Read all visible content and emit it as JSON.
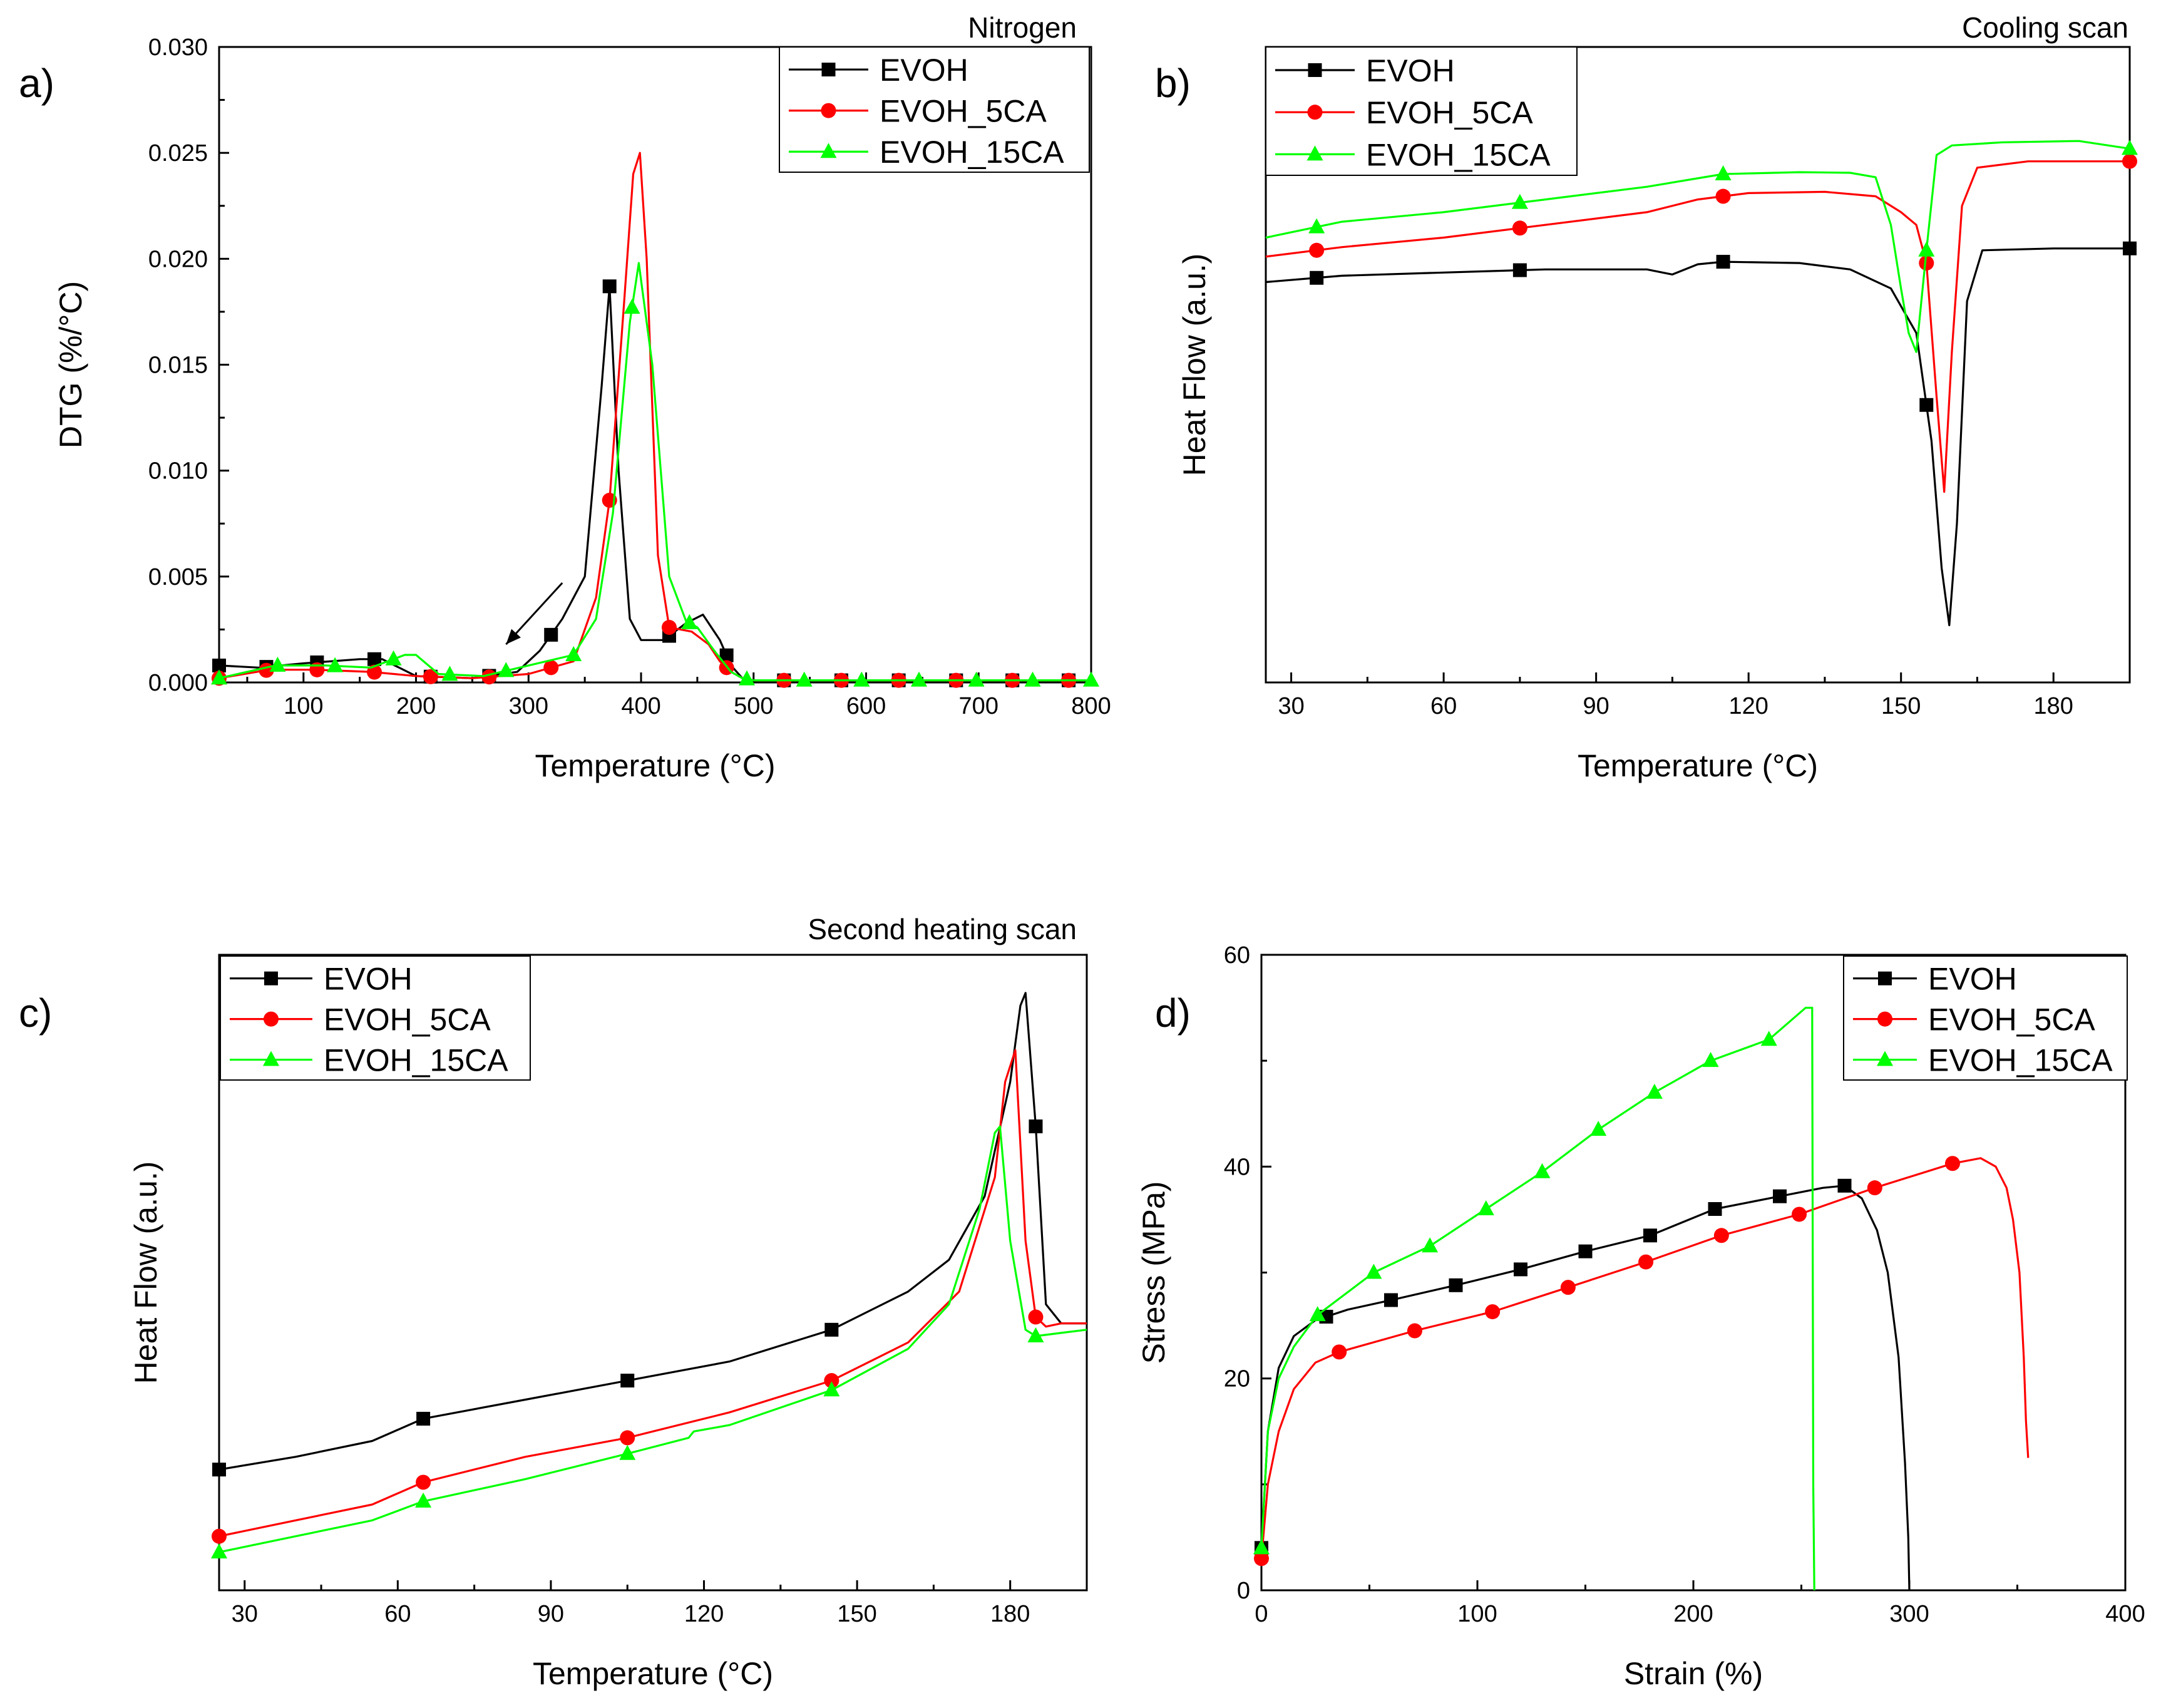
{
  "chart_data": [
    {
      "type": "line",
      "panel_letter": "a)",
      "title": "Nitrogen",
      "xlabel": "Temperature (°C)",
      "ylabel": "DTG (%/°C)",
      "xlim": [
        25,
        800
      ],
      "ylim": [
        0,
        0.03
      ],
      "xticks": [
        100,
        200,
        300,
        400,
        500,
        600,
        700,
        800
      ],
      "yticks": [
        0.0,
        0.005,
        0.01,
        0.015,
        0.02,
        0.025,
        0.03
      ],
      "ytick_labels": [
        "0.000",
        "0.005",
        "0.010",
        "0.015",
        "0.020",
        "0.025",
        "0.030"
      ],
      "legend": "top-right",
      "annotations": [
        {
          "type": "arrow",
          "from": [
            330,
            0.0047
          ],
          "to": [
            280,
            0.0018
          ]
        }
      ],
      "series": [
        {
          "name": "EVOH",
          "color": "#000000",
          "marker": "square",
          "x": [
            25,
            60,
            100,
            150,
            170,
            200,
            250,
            290,
            310,
            330,
            350,
            365,
            372,
            380,
            390,
            400,
            420,
            440,
            455,
            470,
            480,
            490,
            500,
            550,
            600,
            700,
            800
          ],
          "y": [
            0.0008,
            0.0007,
            0.0009,
            0.0011,
            0.0011,
            0.0003,
            0.0002,
            0.0005,
            0.0015,
            0.003,
            0.005,
            0.014,
            0.0187,
            0.01,
            0.003,
            0.002,
            0.002,
            0.0028,
            0.0032,
            0.002,
            0.0008,
            0.0002,
            0.0001,
            0.0001,
            0.0001,
            0.0001,
            0.0001
          ],
          "markers_x": [
            25,
            67,
            112,
            163,
            213,
            265,
            320,
            372,
            425,
            476,
            527,
            578,
            629,
            680,
            730,
            780
          ]
        },
        {
          "name": "EVOH_5CA",
          "color": "#ff0000",
          "marker": "circle",
          "x": [
            25,
            70,
            110,
            160,
            200,
            250,
            300,
            340,
            360,
            372,
            385,
            393,
            399,
            405,
            415,
            425,
            445,
            460,
            470,
            480,
            490,
            500,
            550,
            600,
            700,
            800
          ],
          "y": [
            0.0002,
            0.0006,
            0.0006,
            0.0005,
            0.0003,
            0.0002,
            0.0004,
            0.001,
            0.004,
            0.0086,
            0.018,
            0.024,
            0.025,
            0.02,
            0.006,
            0.0026,
            0.0024,
            0.0018,
            0.001,
            0.0005,
            0.0002,
            0.0001,
            0.0001,
            0.0001,
            0.0001,
            0.0001
          ],
          "markers_x": [
            25,
            67,
            112,
            163,
            213,
            265,
            320,
            372,
            425,
            476,
            527,
            578,
            629,
            680,
            730,
            780
          ]
        },
        {
          "name": "EVOH_15CA",
          "color": "#00ff00",
          "marker": "triangle",
          "x": [
            25,
            75,
            120,
            160,
            190,
            200,
            220,
            260,
            300,
            340,
            360,
            375,
            390,
            398,
            410,
            425,
            440,
            450,
            465,
            480,
            490,
            500,
            550,
            600,
            700,
            800
          ],
          "y": [
            0.0002,
            0.0008,
            0.0008,
            0.0007,
            0.0013,
            0.0013,
            0.0004,
            0.0003,
            0.0008,
            0.0013,
            0.003,
            0.008,
            0.017,
            0.0198,
            0.015,
            0.005,
            0.0029,
            0.0026,
            0.0015,
            0.0005,
            0.0002,
            0.0001,
            0.0001,
            0.0001,
            0.0001,
            0.0001
          ],
          "markers_x": [
            25,
            77,
            128,
            180,
            230,
            280,
            340,
            392,
            443,
            494,
            545,
            596,
            647,
            698,
            748,
            800
          ]
        }
      ]
    },
    {
      "type": "line",
      "panel_letter": "b)",
      "title": "Cooling scan",
      "xlabel": "Temperature (°C)",
      "ylabel": "Heat Flow  (a.u.)",
      "xlim": [
        25,
        195
      ],
      "ylim": [
        0,
        100
      ],
      "xticks": [
        30,
        60,
        90,
        120,
        150,
        180
      ],
      "yticks": [],
      "legend": "top-left",
      "series": [
        {
          "name": "EVOH",
          "color": "#000000",
          "marker": "square",
          "x": [
            25,
            40,
            60,
            80,
            100,
            105,
            110,
            115,
            130,
            140,
            148,
            153,
            156,
            158,
            159.5,
            161,
            163,
            166,
            180,
            195
          ],
          "y": [
            63,
            64,
            64.5,
            65,
            65,
            64.2,
            65.8,
            66.2,
            66,
            65,
            62,
            55,
            38,
            18,
            9,
            25,
            60,
            68,
            68.3,
            68.3
          ],
          "markers_x": [
            35,
            75,
            115,
            155,
            195
          ]
        },
        {
          "name": "EVOH_5CA",
          "color": "#ff0000",
          "marker": "circle",
          "x": [
            25,
            40,
            60,
            80,
            100,
            110,
            120,
            135,
            145,
            150,
            153,
            155,
            157,
            158.5,
            160,
            162,
            165,
            175,
            195
          ],
          "y": [
            67,
            68.5,
            70,
            72,
            74,
            76,
            77,
            77.2,
            76.5,
            74,
            72,
            66,
            45,
            30,
            52,
            75,
            81,
            82,
            82
          ],
          "markers_x": [
            35,
            75,
            115,
            155,
            195
          ]
        },
        {
          "name": "EVOH_15CA",
          "color": "#00ff00",
          "marker": "triangle",
          "x": [
            25,
            40,
            60,
            80,
            100,
            115,
            130,
            140,
            145,
            148,
            150,
            151.5,
            153,
            155,
            157,
            160,
            170,
            185,
            195
          ],
          "y": [
            70,
            72.5,
            74,
            76,
            78,
            80,
            80.3,
            80.2,
            79.5,
            72,
            62,
            55,
            52,
            68,
            83,
            84.5,
            85,
            85.2,
            84
          ],
          "markers_x": [
            35,
            75,
            115,
            155,
            195
          ]
        }
      ]
    },
    {
      "type": "line",
      "panel_letter": "c)",
      "title": "Second heating scan",
      "xlabel": "Temperature (°C)",
      "ylabel": "Heat Flow  (a.u.)",
      "xlim": [
        25,
        195
      ],
      "ylim": [
        0,
        100
      ],
      "xticks": [
        30,
        60,
        90,
        120,
        150,
        180
      ],
      "yticks": [],
      "legend": "top-left",
      "series": [
        {
          "name": "EVOH",
          "color": "#000000",
          "marker": "square",
          "x": [
            25,
            40,
            55,
            65,
            85,
            105,
            125,
            145,
            160,
            168,
            175,
            180,
            182,
            183,
            185,
            187,
            190,
            195
          ],
          "y": [
            19,
            21,
            23.5,
            27,
            30,
            33,
            36,
            41,
            47,
            52,
            62,
            80,
            92,
            94,
            73,
            45,
            42,
            42
          ],
          "markers_x": [
            25,
            65,
            105,
            145,
            185
          ]
        },
        {
          "name": "EVOH_5CA",
          "color": "#ff0000",
          "marker": "circle",
          "x": [
            25,
            40,
            55,
            65,
            85,
            105,
            125,
            145,
            160,
            170,
            177,
            179,
            181,
            183,
            185,
            187,
            190,
            195
          ],
          "y": [
            8.5,
            11,
            13.5,
            17,
            21,
            24,
            28,
            33,
            39,
            47,
            65,
            80,
            85,
            55,
            43,
            41.5,
            42,
            42
          ],
          "markers_x": [
            25,
            65,
            105,
            145,
            185
          ]
        },
        {
          "name": "EVOH_15CA",
          "color": "#00ff00",
          "marker": "triangle",
          "x": [
            25,
            40,
            55,
            65,
            85,
            105,
            117,
            118,
            125,
            145,
            160,
            168,
            174,
            177,
            178,
            180,
            183,
            185,
            190,
            195
          ],
          "y": [
            6,
            8.5,
            11,
            14,
            17.5,
            21.5,
            24,
            25,
            26,
            31.5,
            38,
            45,
            60,
            72,
            73,
            55,
            41,
            40,
            40.5,
            41
          ],
          "markers_x": [
            25,
            65,
            105,
            145,
            185
          ]
        }
      ]
    },
    {
      "type": "line",
      "panel_letter": "d)",
      "title": "",
      "xlabel": "Strain (%)",
      "ylabel": "Stress (MPa)",
      "xlim": [
        0,
        400
      ],
      "ylim": [
        0,
        60
      ],
      "xticks": [
        0,
        100,
        200,
        300,
        400
      ],
      "yticks": [
        0,
        20,
        40,
        60
      ],
      "legend": "top-right",
      "series": [
        {
          "name": "EVOH",
          "color": "#000000",
          "marker": "square",
          "x": [
            0,
            3,
            8,
            15,
            25,
            40,
            60,
            90,
            120,
            150,
            180,
            210,
            240,
            260,
            270,
            278,
            285,
            290,
            295,
            298,
            299.5,
            300,
            300
          ],
          "y": [
            4,
            15,
            21,
            24,
            25.5,
            26.5,
            27.4,
            28.8,
            30.3,
            32,
            33.5,
            36,
            37.2,
            38,
            38.2,
            37,
            34,
            30,
            22,
            12,
            5,
            0,
            0
          ],
          "markers_x": [
            0,
            30,
            60,
            90,
            120,
            150,
            180,
            210,
            240,
            270
          ]
        },
        {
          "name": "EVOH_5CA",
          "color": "#ff0000",
          "marker": "circle",
          "x": [
            0,
            3,
            8,
            15,
            25,
            36,
            71,
            107,
            142,
            178,
            213,
            249,
            284,
            320,
            333,
            340,
            345,
            348,
            351,
            353,
            354,
            355
          ],
          "y": [
            3,
            10,
            15,
            19,
            21.5,
            22.5,
            24.5,
            26.3,
            28.6,
            31,
            33.5,
            35.5,
            38,
            40.3,
            40.8,
            40,
            38,
            35,
            30,
            22,
            16,
            12.5
          ],
          "markers_x": [
            0,
            36,
            71,
            107,
            142,
            178,
            213,
            249,
            284,
            320
          ]
        },
        {
          "name": "EVOH_15CA",
          "color": "#00ff00",
          "marker": "triangle",
          "x": [
            0,
            3,
            8,
            15,
            26,
            52,
            78,
            104,
            130,
            156,
            182,
            208,
            235,
            252,
            255,
            255.5,
            256
          ],
          "y": [
            4,
            15,
            20,
            23,
            26,
            30,
            32.5,
            36,
            39.5,
            43.5,
            47,
            50,
            52,
            55,
            55,
            10,
            0
          ],
          "markers_x": [
            0,
            26,
            52,
            78,
            104,
            130,
            156,
            182,
            208,
            235
          ]
        }
      ]
    }
  ]
}
